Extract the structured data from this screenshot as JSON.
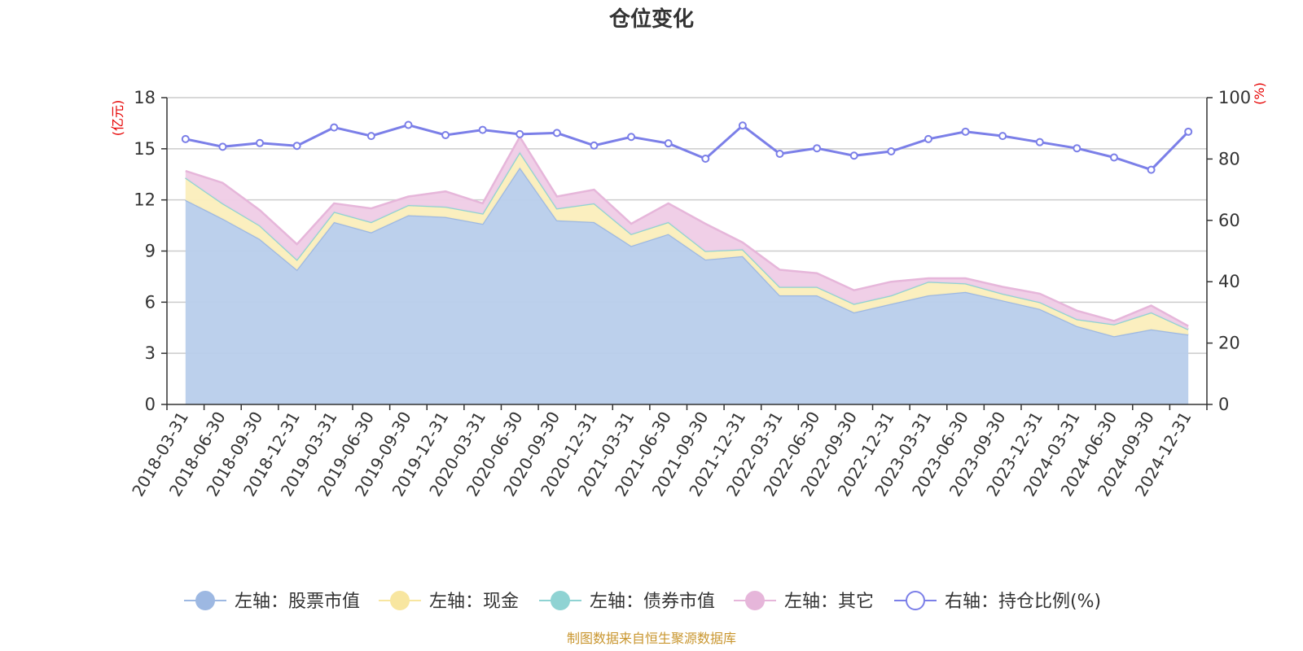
{
  "chart_data": {
    "type": "area",
    "title": "仓位变化",
    "source_note": "制图数据来自恒生聚源数据库",
    "left_axis": {
      "unit": "(亿元)",
      "range": [
        0,
        18
      ],
      "ticks": [
        0,
        3,
        6,
        9,
        12,
        15,
        18
      ]
    },
    "right_axis": {
      "unit": "(%)",
      "range": [
        0,
        100
      ],
      "ticks": [
        0,
        20,
        40,
        60,
        80,
        100
      ]
    },
    "categories": [
      "2018-03-31",
      "2018-06-30",
      "2018-09-30",
      "2018-12-31",
      "2019-03-31",
      "2019-06-30",
      "2019-09-30",
      "2019-12-31",
      "2020-03-31",
      "2020-06-30",
      "2020-09-30",
      "2020-12-31",
      "2021-03-31",
      "2021-06-30",
      "2021-09-30",
      "2021-12-31",
      "2022-03-31",
      "2022-06-30",
      "2022-09-30",
      "2022-12-31",
      "2023-03-31",
      "2023-06-30",
      "2023-09-30",
      "2023-12-31",
      "2024-03-31",
      "2024-06-30",
      "2024-09-30",
      "2024-12-31"
    ],
    "series": [
      {
        "name": "左轴：股票市值",
        "axis": "left",
        "kind": "stacked-area",
        "color": "#9db8e2",
        "fill": "#b8cdeb",
        "values": [
          12.0,
          10.9,
          9.7,
          7.9,
          10.7,
          10.1,
          11.1,
          11.0,
          10.6,
          13.9,
          10.8,
          10.7,
          9.3,
          10.0,
          8.5,
          8.7,
          6.4,
          6.4,
          5.4,
          5.9,
          6.4,
          6.6,
          6.1,
          5.6,
          4.6,
          4.0,
          4.4,
          4.1
        ]
      },
      {
        "name": "左轴：现金",
        "axis": "left",
        "kind": "stacked-area",
        "color": "#f8e6a0",
        "fill": "#fbeebc",
        "values": [
          1.3,
          0.9,
          0.8,
          0.6,
          0.6,
          0.6,
          0.6,
          0.6,
          0.6,
          0.9,
          0.7,
          1.1,
          0.7,
          0.7,
          0.5,
          0.4,
          0.5,
          0.5,
          0.5,
          0.5,
          0.8,
          0.5,
          0.4,
          0.4,
          0.4,
          0.7,
          1.0,
          0.3
        ]
      },
      {
        "name": "左轴：债券市值",
        "axis": "left",
        "kind": "stacked-area",
        "color": "#8fd3d3",
        "fill": "#a8dede",
        "values": [
          0,
          0,
          0,
          0,
          0,
          0,
          0,
          0,
          0,
          0,
          0,
          0,
          0,
          0,
          0,
          0,
          0,
          0,
          0,
          0,
          0,
          0,
          0,
          0,
          0,
          0,
          0,
          0
        ]
      },
      {
        "name": "左轴：其它",
        "axis": "left",
        "kind": "stacked-area",
        "color": "#e6b6da",
        "fill": "#efcce6",
        "values": [
          0.4,
          1.2,
          0.9,
          0.9,
          0.5,
          0.8,
          0.5,
          0.9,
          0.6,
          0.9,
          0.7,
          0.8,
          0.6,
          1.1,
          1.6,
          0.4,
          1.0,
          0.8,
          0.8,
          0.8,
          0.2,
          0.3,
          0.4,
          0.5,
          0.5,
          0.2,
          0.4,
          0.2
        ]
      },
      {
        "name": "右轴：持仓比例(%)",
        "axis": "right",
        "kind": "line",
        "color": "#7b7fe8",
        "values": [
          86.5,
          84.0,
          85.2,
          84.3,
          90.3,
          87.5,
          91.1,
          87.8,
          89.5,
          88.1,
          88.5,
          84.4,
          87.2,
          85.1,
          80.1,
          90.9,
          81.7,
          83.5,
          81.1,
          82.5,
          86.5,
          88.9,
          87.5,
          85.5,
          83.5,
          80.5,
          76.5,
          88.9
        ]
      }
    ]
  }
}
